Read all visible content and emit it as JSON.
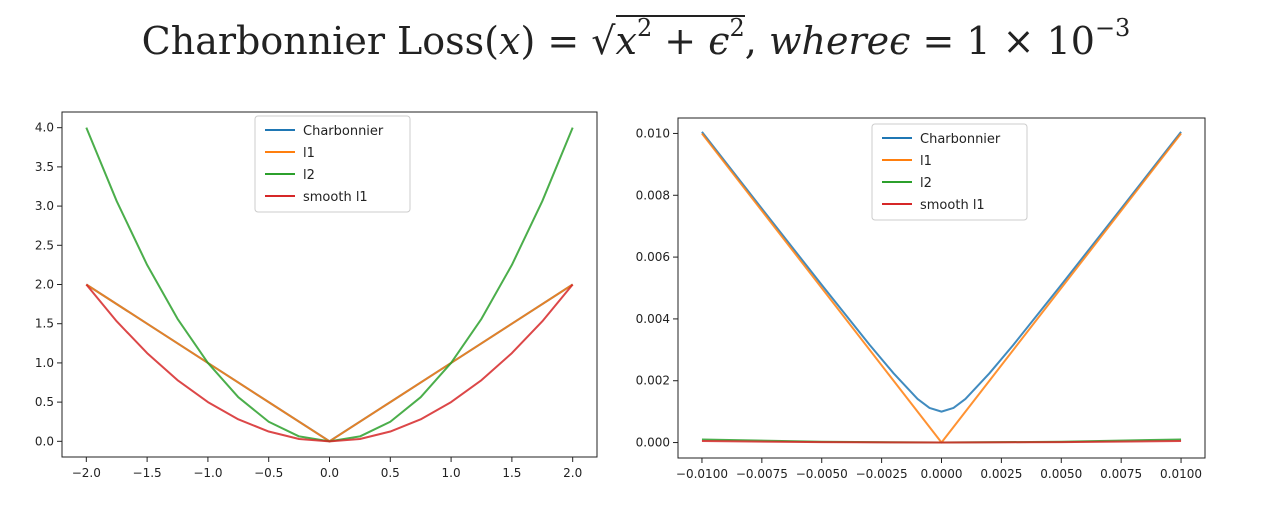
{
  "title": {
    "lhs": "Charbonnier Loss(",
    "var": "x",
    "rhs1": ") = ",
    "sqrt_open": "√",
    "x": "x",
    "sq": "2",
    "plus": " + ",
    "eps": "ϵ",
    "sq2": "2",
    "comma": ", ",
    "where": "whereϵ",
    "eq": " = 1 × 10",
    "exp": "−3"
  },
  "colors": {
    "charbonnier": "#1f77b4",
    "l1": "#ff7f0e",
    "l2": "#2ca02c",
    "smooth_l1": "#d62728"
  },
  "chart_data": [
    {
      "type": "line",
      "title": "",
      "xlabel": "",
      "ylabel": "",
      "xlim": [
        -2.2,
        2.2
      ],
      "ylim": [
        -0.2,
        4.2
      ],
      "x_ticks": [
        -2.0,
        -1.5,
        -1.0,
        -0.5,
        0.0,
        0.5,
        1.0,
        1.5,
        2.0
      ],
      "x_tick_labels": [
        "−2.0",
        "−1.5",
        "−1.0",
        "−0.5",
        "0.0",
        "0.5",
        "1.0",
        "1.5",
        "2.0"
      ],
      "y_ticks": [
        0.0,
        0.5,
        1.0,
        1.5,
        2.0,
        2.5,
        3.0,
        3.5,
        4.0
      ],
      "y_tick_labels": [
        "0.0",
        "0.5",
        "1.0",
        "1.5",
        "2.0",
        "2.5",
        "3.0",
        "3.5",
        "4.0"
      ],
      "legend_position": "top-center",
      "series": [
        {
          "name": "Charbonnier",
          "color_key": "charbonnier",
          "x": [
            -2.0,
            -1.5,
            -1.0,
            -0.5,
            0.0,
            0.5,
            1.0,
            1.5,
            2.0
          ],
          "y": [
            2.0,
            1.5,
            1.0,
            0.5,
            0.001,
            0.5,
            1.0,
            1.5,
            2.0
          ]
        },
        {
          "name": "l1",
          "color_key": "l1",
          "x": [
            -2.0,
            -1.5,
            -1.0,
            -0.5,
            0.0,
            0.5,
            1.0,
            1.5,
            2.0
          ],
          "y": [
            2.0,
            1.5,
            1.0,
            0.5,
            0.0,
            0.5,
            1.0,
            1.5,
            2.0
          ]
        },
        {
          "name": "l2",
          "color_key": "l2",
          "x": [
            -2.0,
            -1.75,
            -1.5,
            -1.25,
            -1.0,
            -0.75,
            -0.5,
            -0.25,
            0.0,
            0.25,
            0.5,
            0.75,
            1.0,
            1.25,
            1.5,
            1.75,
            2.0
          ],
          "y": [
            4.0,
            3.0625,
            2.25,
            1.5625,
            1.0,
            0.5625,
            0.25,
            0.0625,
            0.0,
            0.0625,
            0.25,
            0.5625,
            1.0,
            1.5625,
            2.25,
            3.0625,
            4.0
          ]
        },
        {
          "name": "smooth l1",
          "color_key": "smooth_l1",
          "x": [
            -2.0,
            -1.75,
            -1.5,
            -1.25,
            -1.0,
            -0.75,
            -0.5,
            -0.25,
            0.0,
            0.25,
            0.5,
            0.75,
            1.0,
            1.25,
            1.5,
            1.75,
            2.0
          ],
          "y": [
            2.0,
            1.53,
            1.125,
            0.78,
            0.5,
            0.28,
            0.125,
            0.03,
            0.0,
            0.03,
            0.125,
            0.28,
            0.5,
            0.78,
            1.125,
            1.53,
            2.0
          ]
        }
      ]
    },
    {
      "type": "line",
      "title": "",
      "xlabel": "",
      "ylabel": "",
      "xlim": [
        -0.011,
        0.011
      ],
      "ylim": [
        -0.0005,
        0.0105
      ],
      "x_ticks": [
        -0.01,
        -0.0075,
        -0.005,
        -0.0025,
        0.0,
        0.0025,
        0.005,
        0.0075,
        0.01
      ],
      "x_tick_labels": [
        "−0.0100",
        "−0.0075",
        "−0.0050",
        "−0.0025",
        "0.0000",
        "0.0025",
        "0.0050",
        "0.0075",
        "0.0100"
      ],
      "y_ticks": [
        0.0,
        0.002,
        0.004,
        0.006,
        0.008,
        0.01
      ],
      "y_tick_labels": [
        "0.000",
        "0.002",
        "0.004",
        "0.006",
        "0.008",
        "0.010"
      ],
      "legend_position": "top-center",
      "series": [
        {
          "name": "Charbonnier",
          "color_key": "charbonnier",
          "x": [
            -0.01,
            -0.0075,
            -0.005,
            -0.003,
            -0.002,
            -0.001,
            -0.0005,
            0.0,
            0.0005,
            0.001,
            0.002,
            0.003,
            0.005,
            0.0075,
            0.01
          ],
          "y": [
            0.01005,
            0.00757,
            0.0051,
            0.00316,
            0.00224,
            0.00141,
            0.00112,
            0.001,
            0.00112,
            0.00141,
            0.00224,
            0.00316,
            0.0051,
            0.00757,
            0.01005
          ]
        },
        {
          "name": "l1",
          "color_key": "l1",
          "x": [
            -0.01,
            0.0,
            0.01
          ],
          "y": [
            0.01,
            0.0,
            0.01
          ]
        },
        {
          "name": "l2",
          "color_key": "l2",
          "x": [
            -0.01,
            -0.005,
            0.0,
            0.005,
            0.01
          ],
          "y": [
            0.0001,
            2.5e-05,
            0.0,
            2.5e-05,
            0.0001
          ]
        },
        {
          "name": "smooth l1",
          "color_key": "smooth_l1",
          "x": [
            -0.01,
            -0.005,
            0.0,
            0.005,
            0.01
          ],
          "y": [
            5e-05,
            1.25e-05,
            0.0,
            1.25e-05,
            5e-05
          ]
        }
      ]
    }
  ]
}
